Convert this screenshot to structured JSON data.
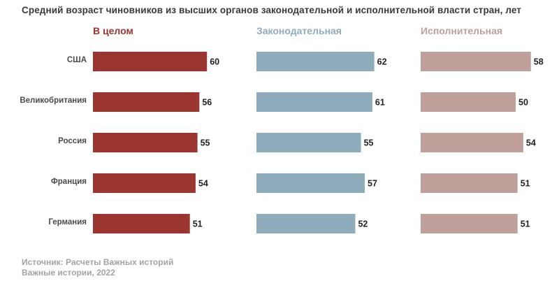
{
  "chart_data": {
    "type": "bar",
    "orientation": "horizontal",
    "title": "Средний возраст чиновников из высших органов законодательной и исполнительной власти стран, лет",
    "categories": [
      "США",
      "Великобритания",
      "Россия",
      "Франция",
      "Германия"
    ],
    "series": [
      {
        "name": "В целом",
        "color": "#9b3530",
        "values": [
          60,
          56,
          55,
          54,
          51
        ]
      },
      {
        "name": "Законодательная",
        "color": "#8eacbc",
        "values": [
          62,
          61,
          55,
          57,
          52
        ]
      },
      {
        "name": "Исполнительная",
        "color": "#bf9f99",
        "values": [
          58,
          50,
          54,
          51,
          51
        ]
      }
    ],
    "xlim": [
      0,
      62
    ],
    "grid": false,
    "legend": "column headers"
  },
  "header": {
    "subtitle": "Средний возраст чиновников из высших органов законодательной и исполнительной власти стран, лет"
  },
  "footer": {
    "source": "Источник: Расчеты Важных историй",
    "credit": "Важные истории, 2022"
  }
}
